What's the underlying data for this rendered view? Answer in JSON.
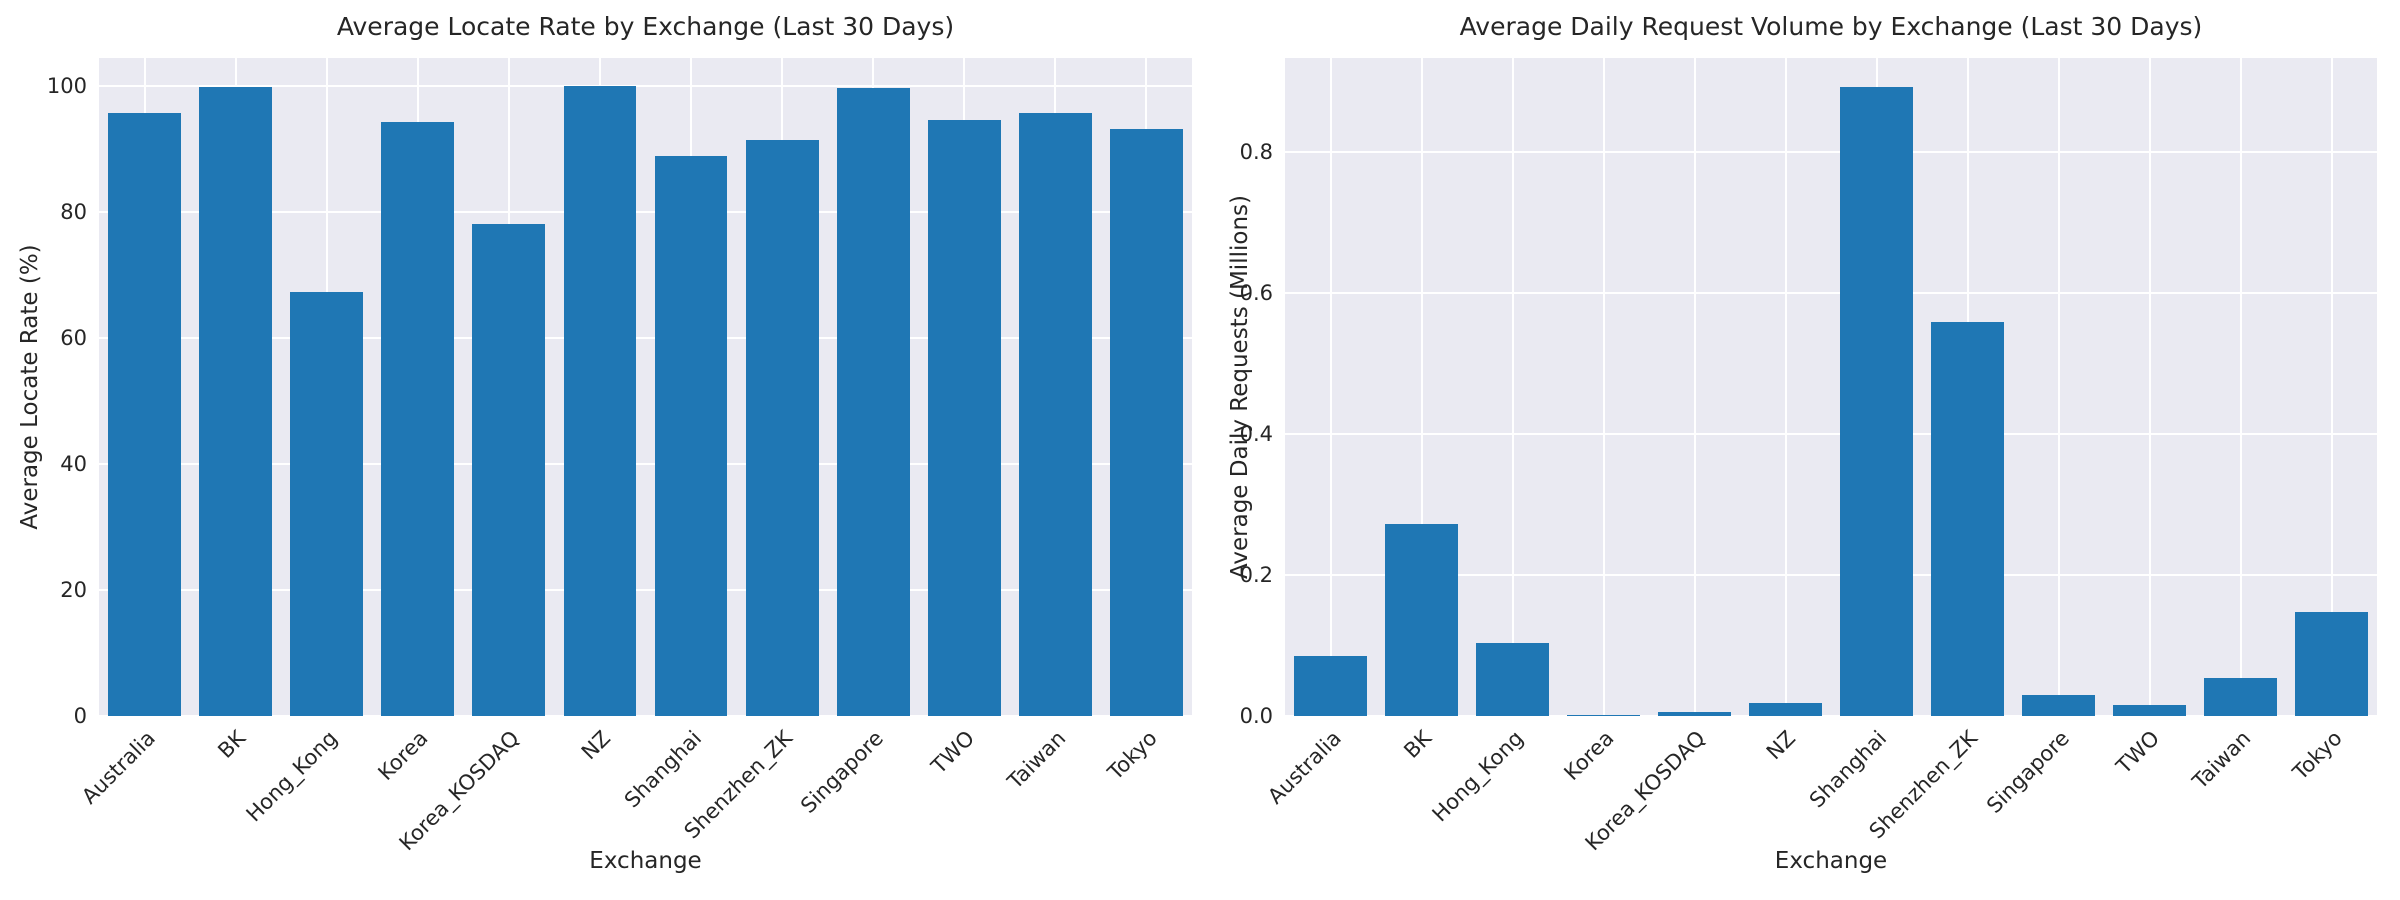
{
  "style": {
    "bar_color": "#1f77b4",
    "plot_background": "#eaeaf2",
    "grid_color": "#ffffff",
    "text_color": "#262626",
    "figure_background": "#ffffff"
  },
  "chart_data": [
    {
      "type": "bar",
      "title": "Average Locate Rate by Exchange (Last 30 Days)",
      "xlabel": "Exchange",
      "ylabel": "Average Locate Rate (%)",
      "categories": [
        "Australia",
        "BK",
        "Hong_Kong",
        "Korea",
        "Korea_KOSDAQ",
        "NZ",
        "Shanghai",
        "Shenzhen_ZK",
        "Singapore",
        "TWO",
        "Taiwan",
        "Tokyo"
      ],
      "values": [
        95.8,
        99.9,
        67.4,
        94.4,
        78.2,
        100.0,
        88.9,
        91.5,
        99.8,
        94.7,
        95.7,
        93.3
      ],
      "yticks": [
        0,
        20,
        40,
        60,
        80,
        100
      ],
      "ytick_labels": [
        "0",
        "20",
        "40",
        "60",
        "80",
        "100"
      ],
      "ylim": [
        0,
        104.5
      ],
      "grid": true,
      "legend": null,
      "xtick_rotation": 45
    },
    {
      "type": "bar",
      "title": "Average Daily Request Volume by Exchange (Last 30 Days)",
      "xlabel": "Exchange",
      "ylabel": "Average Daily Requests (Millions)",
      "categories": [
        "Australia",
        "BK",
        "Hong_Kong",
        "Korea",
        "Korea_KOSDAQ",
        "NZ",
        "Shanghai",
        "Shenzhen_ZK",
        "Singapore",
        "TWO",
        "Taiwan",
        "Tokyo"
      ],
      "values": [
        0.085,
        0.272,
        0.103,
        0.002,
        0.005,
        0.018,
        0.892,
        0.559,
        0.03,
        0.015,
        0.054,
        0.147
      ],
      "yticks": [
        0.0,
        0.2,
        0.4,
        0.6,
        0.8
      ],
      "ytick_labels": [
        "0.0",
        "0.2",
        "0.4",
        "0.6",
        "0.8"
      ],
      "ylim": [
        0,
        0.933
      ],
      "grid": true,
      "legend": null,
      "xtick_rotation": 45
    }
  ]
}
